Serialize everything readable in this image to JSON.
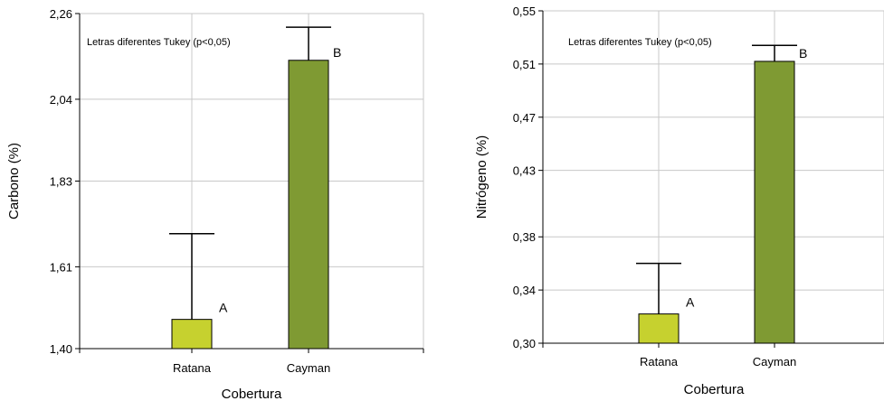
{
  "chart_data": [
    {
      "type": "bar",
      "categories": [
        "Ratana",
        "Cayman"
      ],
      "values": [
        1.475,
        2.14
      ],
      "error_upper": [
        1.695,
        2.225
      ],
      "significance_letters": [
        "A",
        "B"
      ],
      "annotation": "Letras diferentes Tukey (p<0,05)",
      "xlabel": "Cobertura",
      "ylabel": "Carbono (%)",
      "yticks": [
        "1,40",
        "1,61",
        "1,83",
        "2,04",
        "2,26"
      ],
      "ylim": [
        1.4,
        2.26
      ],
      "grid": true,
      "colors": [
        "#c6d12f",
        "#7f9a33"
      ]
    },
    {
      "type": "bar",
      "categories": [
        "Ratana",
        "Cayman"
      ],
      "values": [
        0.322,
        0.512
      ],
      "error_upper": [
        0.36,
        0.524
      ],
      "significance_letters": [
        "A",
        "B"
      ],
      "annotation": "Letras diferentes Tukey (p<0,05)",
      "xlabel": "Cobertura",
      "ylabel": "Nitrógeno (%)",
      "yticks": [
        "0,30",
        "0,34",
        "0,38",
        "0,43",
        "0,47",
        "0,51",
        "0,55"
      ],
      "ylim": [
        0.3,
        0.55
      ],
      "grid": true,
      "colors": [
        "#c6d12f",
        "#7f9a33"
      ]
    }
  ]
}
